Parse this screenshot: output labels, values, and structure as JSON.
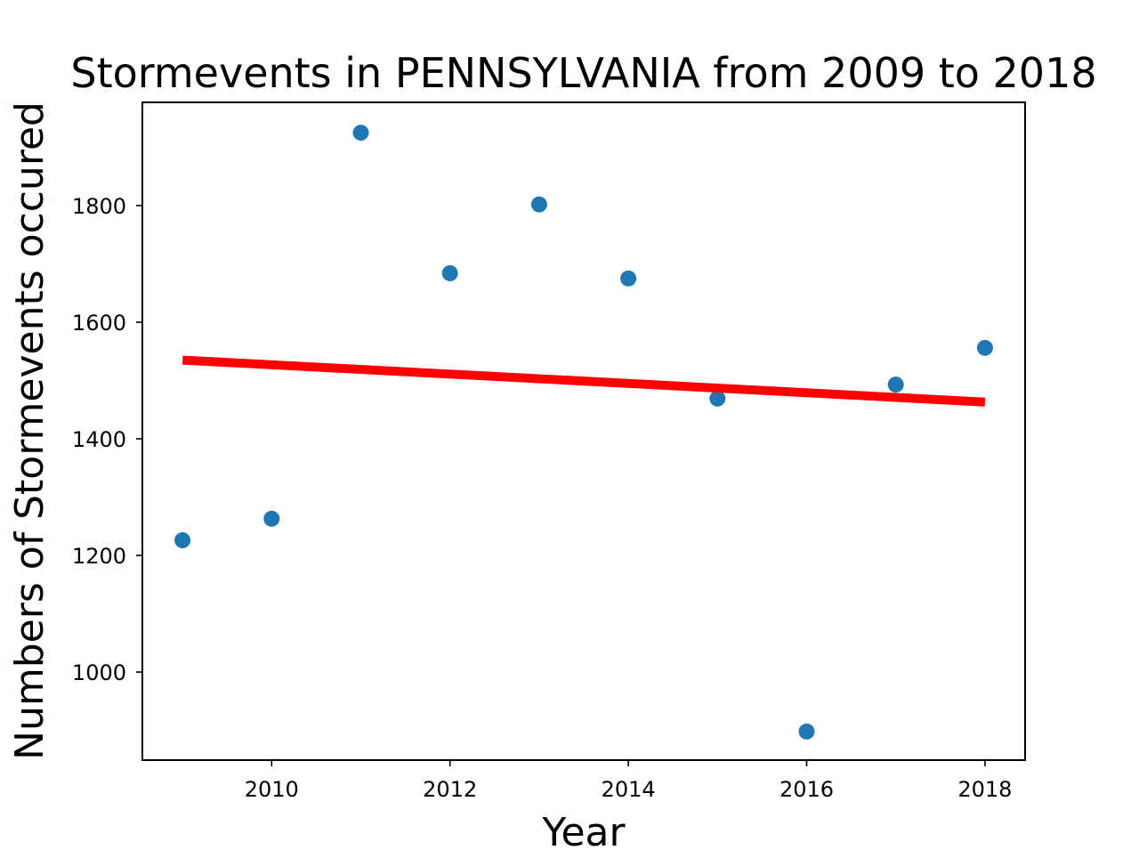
{
  "chart_data": {
    "type": "scatter",
    "title": "Stormevents in PENNSYLVANIA from 2009 to 2018",
    "xlabel": "Year",
    "ylabel": "Numbers of Stormevents occured",
    "xlim": [
      2008.55,
      2018.45
    ],
    "ylim": [
      849,
      1977
    ],
    "xticks": [
      2010,
      2012,
      2014,
      2016,
      2018
    ],
    "yticks": [
      1000,
      1200,
      1400,
      1600,
      1800
    ],
    "grid": false,
    "legend": "none",
    "series": [
      {
        "x": [
          2009,
          2010,
          2011,
          2012,
          2013,
          2014,
          2015,
          2016,
          2017,
          2018
        ],
        "y": [
          1226,
          1263,
          1925,
          1684,
          1802,
          1675,
          1469,
          898,
          1493,
          1556
        ],
        "color": "#1f77b4"
      }
    ],
    "trendline": {
      "x": [
        2009,
        2018
      ],
      "y": [
        1535,
        1463
      ],
      "color": "#ff0000"
    }
  }
}
